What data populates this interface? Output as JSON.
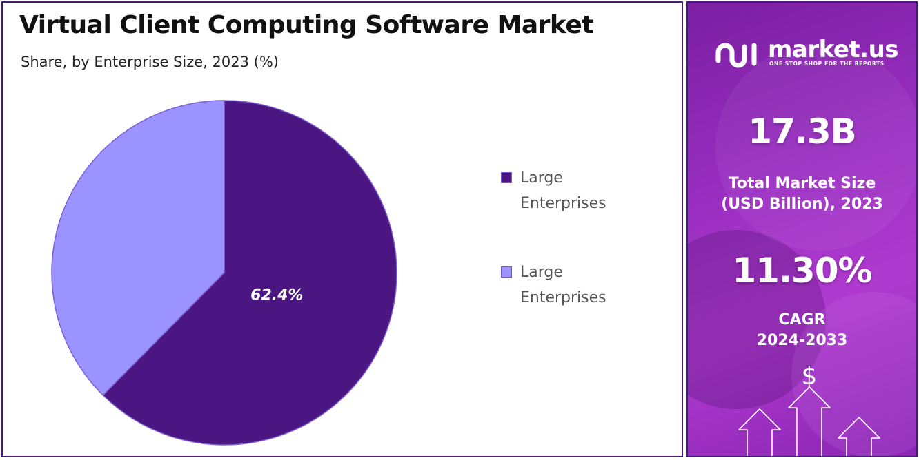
{
  "title": "Virtual Client Computing Software Market",
  "subtitle": "Share, by Enterprise Size, 2023 (%)",
  "chart_data": {
    "type": "pie",
    "title": "Virtual Client Computing Software Market",
    "subtitle": "Share, by Enterprise Size, 2023 (%)",
    "slices": [
      {
        "label": "Large Enterprises",
        "value": 62.4,
        "color": "#4b1582",
        "data_label": "62.4%"
      },
      {
        "label": "Large Enterprises",
        "value": 37.6,
        "color": "#9b93ff",
        "data_label": ""
      }
    ],
    "legend_position": "right"
  },
  "legend": [
    {
      "line1": "Large",
      "line2": "Enterprises",
      "color": "#4b1582"
    },
    {
      "line1": "Large",
      "line2": "Enterprises",
      "color": "#9b93ff"
    }
  ],
  "sidebar": {
    "brand_name": "market.us",
    "brand_tagline": "ONE STOP SHOP FOR THE REPORTS",
    "market_size_value": "17.3B",
    "market_size_label_line1": "Total Market Size",
    "market_size_label_line2": "(USD Billion), 2023",
    "cagr_value": "11.30%",
    "cagr_label_line1": "CAGR",
    "cagr_label_line2": "2024-2033",
    "currency_symbol": "$"
  }
}
